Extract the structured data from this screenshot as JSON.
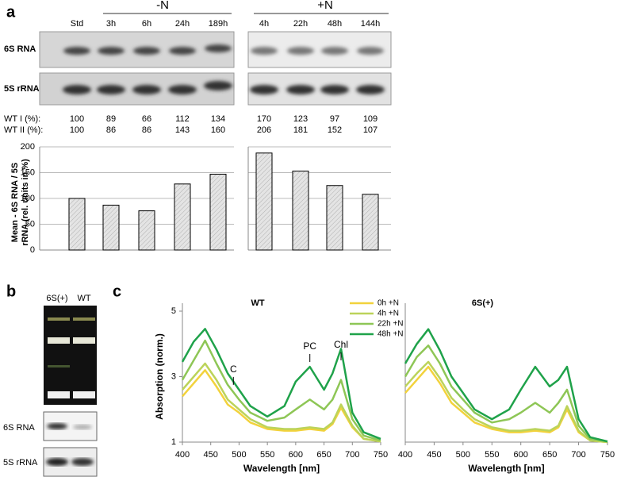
{
  "figure": {
    "panel_a": "a",
    "panel_b": "b",
    "panel_c": "c",
    "gel_a": {
      "rows": [
        "6S RNA",
        "5S rRNA"
      ]
    },
    "table": {
      "rows": [
        {
          "label": "WT I (%):",
          "values": [
            100,
            89,
            66,
            112,
            134,
            170,
            123,
            97,
            109
          ]
        },
        {
          "label": "WT II (%):",
          "values": [
            100,
            86,
            86,
            143,
            160,
            206,
            181,
            152,
            107
          ]
        }
      ]
    },
    "gel_b": {
      "lanes": [
        "6S(+)",
        "WT"
      ],
      "rows": [
        "6S RNA",
        "5S rRNA"
      ]
    }
  },
  "chart_data": [
    {
      "type": "bar",
      "groups": [
        "-N",
        "+N"
      ],
      "categories": [
        "Std",
        "3h",
        "6h",
        "24h",
        "189h",
        "4h",
        "22h",
        "48h",
        "144h"
      ],
      "values": [
        100,
        87,
        76,
        128,
        147,
        188,
        153,
        125,
        108
      ],
      "color": "#d9d9d9",
      "ylim": [
        0,
        200
      ],
      "yticks": [
        0,
        50,
        100,
        150,
        200
      ],
      "ylabel": [
        "Mean - 6S RNA / 5S",
        "rRNA (rel. units in %)"
      ],
      "grid": true
    },
    {
      "type": "line",
      "title": "WT",
      "xlabel": "Wavelength [nm]",
      "ylabel": "Absorption (norm.)",
      "legend": true,
      "annotations": [
        "C",
        "PC",
        "Chl"
      ],
      "x": [
        400,
        420,
        440,
        460,
        480,
        500,
        520,
        550,
        580,
        600,
        625,
        650,
        665,
        680,
        700,
        720,
        750
      ],
      "xlim": [
        400,
        750
      ],
      "xticks": [
        400,
        450,
        500,
        550,
        600,
        650,
        700,
        750
      ],
      "ylim": [
        1,
        5
      ],
      "yticks": [
        1,
        3,
        5
      ],
      "series": [
        {
          "name": "0h +N",
          "color": "#f2d23c",
          "values": [
            2.4,
            2.8,
            3.2,
            2.7,
            2.15,
            1.9,
            1.6,
            1.4,
            1.35,
            1.35,
            1.4,
            1.35,
            1.55,
            2.05,
            1.45,
            1.1,
            1.02
          ]
        },
        {
          "name": "4h +N",
          "color": "#bcd35a",
          "values": [
            2.6,
            3.0,
            3.4,
            2.9,
            2.3,
            2.0,
            1.7,
            1.45,
            1.4,
            1.4,
            1.45,
            1.4,
            1.6,
            2.15,
            1.5,
            1.1,
            1.02
          ]
        },
        {
          "name": "22h +N",
          "color": "#8ec656",
          "values": [
            2.9,
            3.5,
            4.1,
            3.4,
            2.75,
            2.3,
            1.9,
            1.65,
            1.75,
            2.0,
            2.3,
            2.0,
            2.3,
            2.9,
            1.7,
            1.2,
            1.05
          ]
        },
        {
          "name": "48h +N",
          "color": "#1fa24a",
          "values": [
            3.45,
            4.07,
            4.46,
            3.83,
            3.1,
            2.6,
            2.1,
            1.78,
            2.1,
            2.85,
            3.3,
            2.6,
            3.1,
            3.85,
            1.9,
            1.3,
            1.1
          ]
        }
      ]
    },
    {
      "type": "line",
      "title": "6S(+)",
      "xlabel": "Wavelength [nm]",
      "legend": false,
      "x": [
        400,
        420,
        440,
        460,
        480,
        500,
        520,
        550,
        580,
        600,
        625,
        650,
        665,
        680,
        700,
        720,
        750
      ],
      "xlim": [
        400,
        750
      ],
      "xticks": [
        400,
        450,
        500,
        550,
        600,
        650,
        700,
        750
      ],
      "ylim": [
        1,
        5
      ],
      "series": [
        {
          "name": "0h +N",
          "color": "#f2d23c",
          "values": [
            2.5,
            2.9,
            3.3,
            2.8,
            2.2,
            1.9,
            1.6,
            1.4,
            1.3,
            1.3,
            1.35,
            1.3,
            1.45,
            2.0,
            1.3,
            1.05,
            1.0
          ]
        },
        {
          "name": "4h +N",
          "color": "#bcd35a",
          "values": [
            2.7,
            3.1,
            3.45,
            2.95,
            2.35,
            2.0,
            1.7,
            1.45,
            1.35,
            1.35,
            1.4,
            1.35,
            1.5,
            2.1,
            1.35,
            1.05,
            1.0
          ]
        },
        {
          "name": "22h +N",
          "color": "#8ec656",
          "values": [
            3.0,
            3.6,
            3.95,
            3.4,
            2.7,
            2.3,
            1.9,
            1.6,
            1.7,
            1.9,
            2.2,
            1.9,
            2.2,
            2.6,
            1.5,
            1.1,
            1.02
          ]
        },
        {
          "name": "48h +N",
          "color": "#1fa24a",
          "values": [
            3.4,
            4.0,
            4.45,
            3.8,
            3.0,
            2.5,
            2.0,
            1.7,
            2.0,
            2.6,
            3.3,
            2.7,
            2.9,
            3.3,
            1.7,
            1.15,
            1.02
          ]
        }
      ]
    }
  ]
}
